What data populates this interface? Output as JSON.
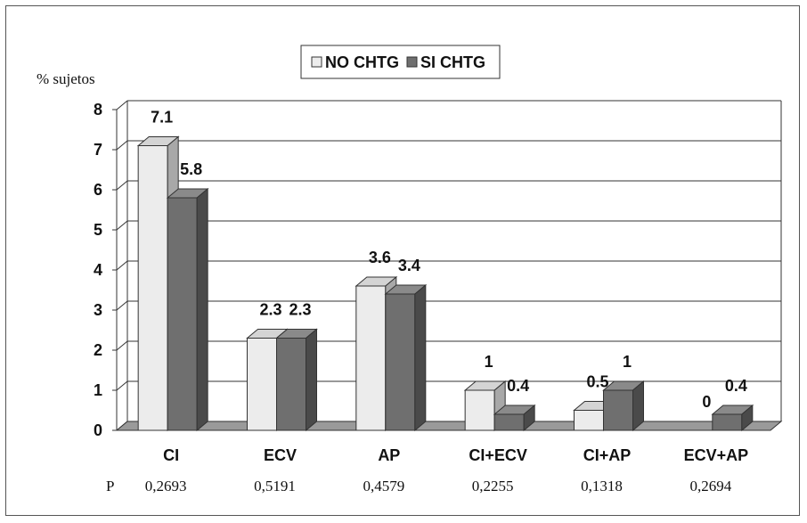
{
  "chart_data": {
    "type": "bar",
    "ylabel": "% sujetos",
    "ylim": [
      0,
      8
    ],
    "yticks": [
      "0",
      "1",
      "2",
      "3",
      "4",
      "5",
      "6",
      "7",
      "8"
    ],
    "grid": true,
    "legend_position": "top-center",
    "categories": [
      "CI",
      "ECV",
      "AP",
      "CI+ECV",
      "CI+AP",
      "ECV+AP"
    ],
    "series": [
      {
        "name": "NO CHTG",
        "values": [
          7.1,
          2.3,
          3.6,
          1,
          0.5,
          0
        ],
        "labels": [
          "7.1",
          "2.3",
          "3.6",
          "1",
          "0.5",
          "0"
        ],
        "color": "#ececec",
        "shade_top": "#d4d4d4",
        "shade_side": "#a8a8a8"
      },
      {
        "name": "SI CHTG",
        "values": [
          5.8,
          2.3,
          3.4,
          0.4,
          1,
          0.4
        ],
        "labels": [
          "5.8",
          "2.3",
          "3.4",
          "0.4",
          "1",
          "0.4"
        ],
        "color": "#6f6f6f",
        "shade_top": "#8a8a8a",
        "shade_side": "#4a4a4a"
      }
    ],
    "p_row": {
      "label": "P",
      "values": [
        "0,2693",
        "0,5191",
        "0,4579",
        "0,2255",
        "0,1318",
        "0,2694"
      ]
    }
  }
}
